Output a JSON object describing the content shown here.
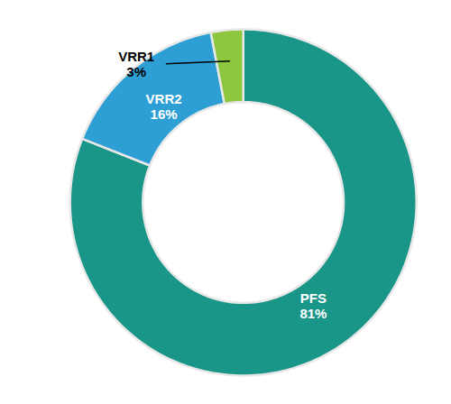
{
  "chart_data": {
    "type": "donut",
    "categories": [
      "PFS",
      "VRR2",
      "VRR1"
    ],
    "values": [
      81,
      16,
      3
    ],
    "value_labels": [
      "81%",
      "16%",
      "3%"
    ],
    "colors": [
      "#1a9688",
      "#2e9fd4",
      "#8dc63f"
    ],
    "data_labels": true,
    "legend": false
  }
}
